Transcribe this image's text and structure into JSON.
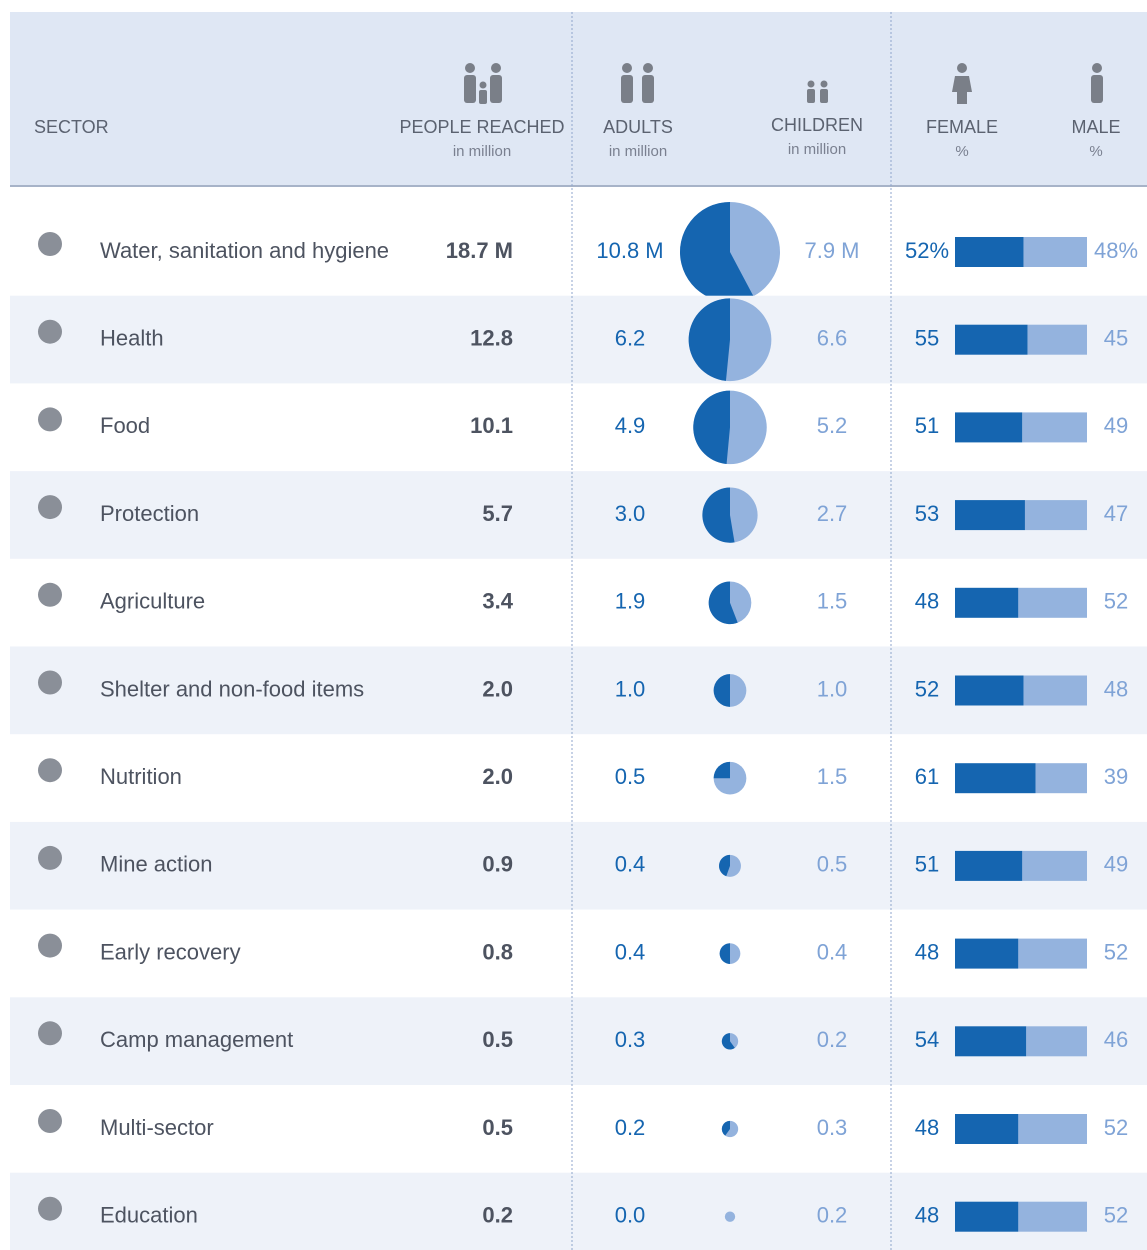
{
  "header": {
    "sector": "SECTOR",
    "people": "PEOPLE REACHED",
    "people_unit": "in million",
    "adults": "ADULTS",
    "adults_unit": "in million",
    "children": "CHILDREN",
    "children_unit": "in million",
    "female": "FEMALE",
    "female_unit": "%",
    "male": "MALE",
    "male_unit": "%"
  },
  "rows": [
    {
      "sector": "Water, sanitation and hygiene",
      "people": 18.7,
      "adults": 10.8,
      "children": 7.9,
      "female": 52,
      "male": 48,
      "labels": {
        "people": "18.7 M",
        "adults": "10.8 M",
        "children": "7.9 M",
        "female": "52%",
        "male": "48%"
      }
    },
    {
      "sector": "Health",
      "people": 12.8,
      "adults": 6.2,
      "children": 6.6,
      "female": 55,
      "male": 45
    },
    {
      "sector": "Food",
      "people": 10.1,
      "adults": 4.9,
      "children": 5.2,
      "female": 51,
      "male": 49
    },
    {
      "sector": "Protection",
      "people": 5.7,
      "adults": 3,
      "children": 2.7,
      "female": 53,
      "male": 47,
      "labels": {
        "adults": "3.0"
      }
    },
    {
      "sector": "Agriculture",
      "people": 3.4,
      "adults": 1.9,
      "children": 1.5,
      "female": 48,
      "male": 52
    },
    {
      "sector": "Shelter and non-food items",
      "people": 2,
      "adults": 1,
      "children": 1,
      "female": 52,
      "male": 48,
      "labels": {
        "people": "2.0",
        "adults": "1.0",
        "children": "1.0"
      }
    },
    {
      "sector": "Nutrition",
      "people": 2,
      "adults": 0.5,
      "children": 1.5,
      "female": 61,
      "male": 39,
      "labels": {
        "people": "2.0"
      }
    },
    {
      "sector": "Mine action",
      "people": 0.9,
      "adults": 0.4,
      "children": 0.5,
      "female": 51,
      "male": 49
    },
    {
      "sector": "Early recovery",
      "people": 0.8,
      "adults": 0.4,
      "children": 0.4,
      "female": 48,
      "male": 52
    },
    {
      "sector": "Camp management",
      "people": 0.5,
      "adults": 0.3,
      "children": 0.2,
      "female": 54,
      "male": 46
    },
    {
      "sector": "Multi-sector",
      "people": 0.5,
      "adults": 0.2,
      "children": 0.3,
      "female": 48,
      "male": 52
    },
    {
      "sector": "Education",
      "people": 0.2,
      "adults": 0,
      "children": 0.2,
      "female": 48,
      "male": 52,
      "labels": {
        "adults": "0.0"
      }
    }
  ]
}
